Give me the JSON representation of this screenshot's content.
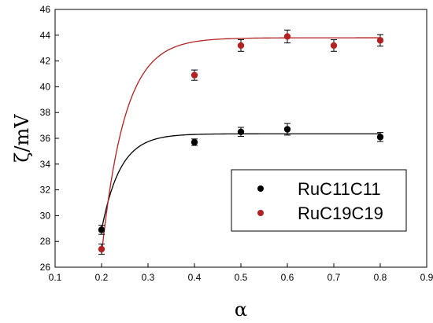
{
  "chart_data": {
    "type": "scatter",
    "title": "",
    "xlabel": "α",
    "ylabel": "ζ/mV",
    "xlim": [
      0.1,
      0.9
    ],
    "ylim": [
      26,
      46
    ],
    "xticks": [
      "0.1",
      "0.2",
      "0.3",
      "0.4",
      "0.5",
      "0.6",
      "0.7",
      "0.8",
      "0.9"
    ],
    "yticks": [
      "26",
      "28",
      "30",
      "32",
      "34",
      "36",
      "38",
      "40",
      "42",
      "44",
      "46"
    ],
    "grid": false,
    "legend_position": "center-right",
    "series": [
      {
        "name": "RuC11C11",
        "color": "#000000",
        "x": [
          0.2,
          0.4,
          0.5,
          0.6,
          0.8
        ],
        "y": [
          28.9,
          35.7,
          36.5,
          36.7,
          36.1
        ],
        "error": [
          0.35,
          0.25,
          0.35,
          0.45,
          0.35
        ],
        "fit": {
          "y0": 28.9,
          "yinf": 36.35,
          "k": 25
        }
      },
      {
        "name": "RuC19C19",
        "color": "#b22222",
        "x": [
          0.2,
          0.4,
          0.5,
          0.6,
          0.7,
          0.8
        ],
        "y": [
          27.4,
          40.9,
          43.2,
          43.9,
          43.2,
          43.6
        ],
        "error": [
          0.4,
          0.4,
          0.45,
          0.5,
          0.45,
          0.45
        ],
        "fit": {
          "y0": 27.0,
          "yinf": 43.8,
          "k": 20
        }
      }
    ]
  }
}
